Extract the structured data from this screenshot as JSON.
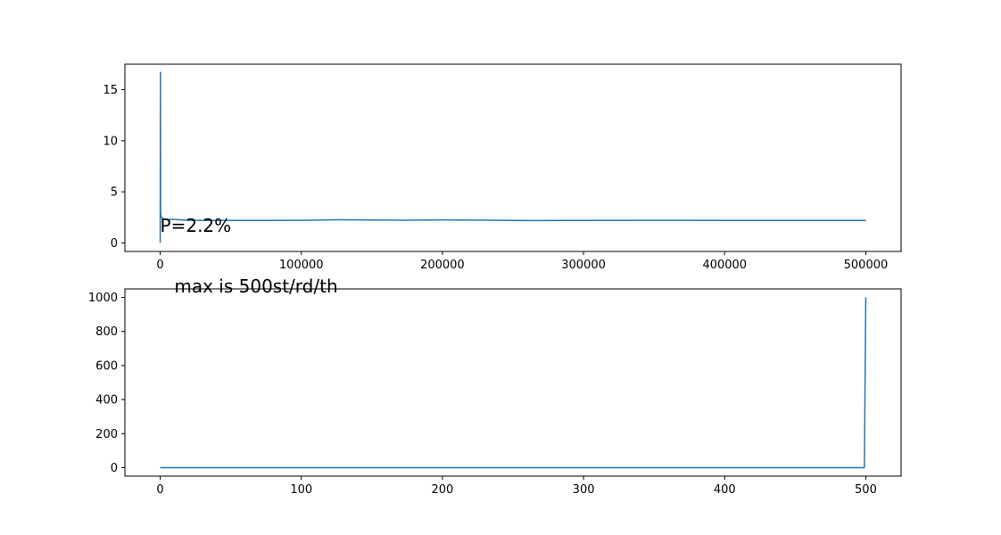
{
  "chart_data": [
    {
      "type": "line",
      "title": "",
      "xlabel": "",
      "ylabel": "",
      "xlim": [
        -25000,
        525000
      ],
      "ylim": [
        -0.84,
        17.5
      ],
      "grid": false,
      "xticks": [
        0,
        100000,
        200000,
        300000,
        400000,
        500000
      ],
      "xtick_labels": [
        "0",
        "100000",
        "200000",
        "300000",
        "400000",
        "500000"
      ],
      "yticks": [
        0,
        5,
        10,
        15
      ],
      "ytick_labels": [
        "0",
        "5",
        "10",
        "15"
      ],
      "annotations": [
        {
          "text": "P=2.2%",
          "x": 0,
          "y": 1.1
        }
      ],
      "series": [
        {
          "color": "#1f77b4",
          "points": [
            [
              0,
              0
            ],
            [
              150,
              16.7
            ],
            [
              300,
              3.0
            ],
            [
              500,
              2.6
            ],
            [
              1000,
              2.5
            ],
            [
              2000,
              2.35
            ],
            [
              3000,
              2.3
            ],
            [
              5000,
              2.25
            ],
            [
              7000,
              2.3
            ],
            [
              10000,
              2.3
            ],
            [
              15000,
              2.25
            ],
            [
              20000,
              2.22
            ],
            [
              30000,
              2.2
            ],
            [
              50000,
              2.2
            ],
            [
              75000,
              2.2
            ],
            [
              100000,
              2.21
            ],
            [
              125000,
              2.26
            ],
            [
              150000,
              2.24
            ],
            [
              175000,
              2.22
            ],
            [
              200000,
              2.25
            ],
            [
              225000,
              2.23
            ],
            [
              250000,
              2.2
            ],
            [
              265000,
              2.18
            ],
            [
              300000,
              2.2
            ],
            [
              350000,
              2.21
            ],
            [
              400000,
              2.2
            ],
            [
              450000,
              2.2
            ],
            [
              500000,
              2.2
            ]
          ]
        }
      ]
    },
    {
      "type": "line",
      "title": "",
      "xlabel": "",
      "ylabel": "",
      "xlim": [
        -25,
        525
      ],
      "ylim": [
        -50,
        1050
      ],
      "grid": false,
      "xticks": [
        0,
        100,
        200,
        300,
        400,
        500
      ],
      "xtick_labels": [
        "0",
        "100",
        "200",
        "300",
        "400",
        "500"
      ],
      "yticks": [
        0,
        200,
        400,
        600,
        800,
        1000
      ],
      "ytick_labels": [
        "0",
        "200",
        "400",
        "600",
        "800",
        "1000"
      ],
      "annotations": [
        {
          "text": "max is 500st/rd/th",
          "x": 10,
          "y": 1030
        }
      ],
      "series": [
        {
          "color": "#1f77b4",
          "points": [
            [
              0,
              0
            ],
            [
              100,
              0
            ],
            [
              200,
              0
            ],
            [
              300,
              0
            ],
            [
              400,
              0
            ],
            [
              499,
              0
            ],
            [
              500,
              1000
            ]
          ]
        }
      ]
    }
  ]
}
